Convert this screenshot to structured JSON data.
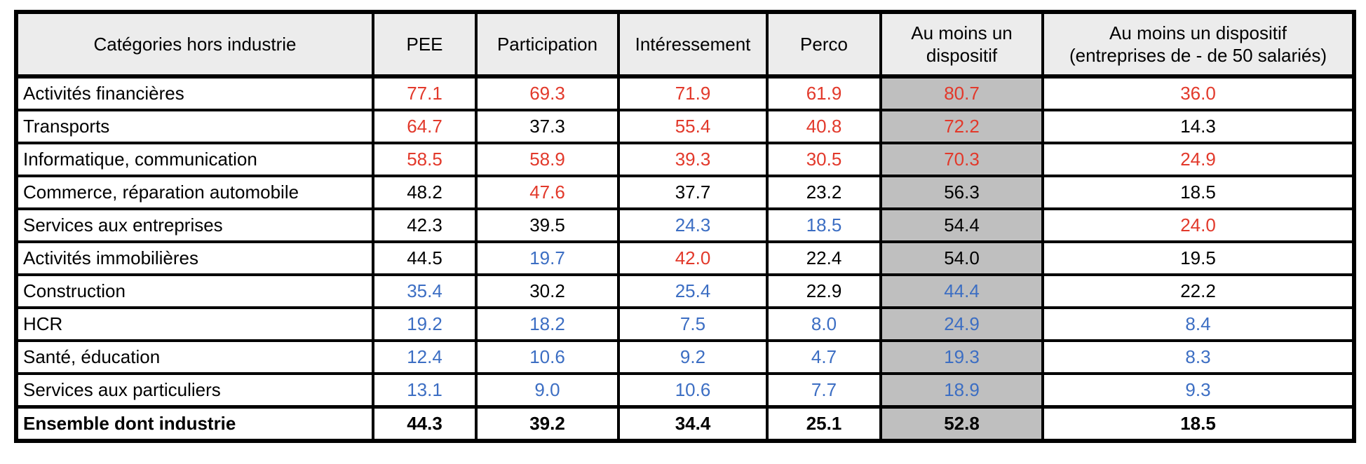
{
  "colors": {
    "red": "#e2392b",
    "blue": "#3c6ec3",
    "black": "#000000",
    "header_bg": "#ececec",
    "highlight_bg": "#bfbfbf",
    "border": "#000000"
  },
  "table": {
    "headers": [
      {
        "line1": "Catégories hors industrie"
      },
      {
        "line1": "PEE"
      },
      {
        "line1": "Participation"
      },
      {
        "line1": "Intéressement"
      },
      {
        "line1": "Perco"
      },
      {
        "line1": "Au moins un",
        "line2": "dispositif"
      },
      {
        "line1": "Au moins un dispositif",
        "line2": "(entreprises de - de 50 salariés)"
      }
    ],
    "rows": [
      {
        "label": "Activités financières",
        "bold": false,
        "values": [
          "77.1",
          "69.3",
          "71.9",
          "61.9",
          "80.7",
          "36.0"
        ],
        "colors": [
          "red",
          "red",
          "red",
          "red",
          "red",
          "red"
        ]
      },
      {
        "label": "Transports",
        "bold": false,
        "values": [
          "64.7",
          "37.3",
          "55.4",
          "40.8",
          "72.2",
          "14.3"
        ],
        "colors": [
          "red",
          "black",
          "red",
          "red",
          "red",
          "black"
        ]
      },
      {
        "label": "Informatique, communication",
        "bold": false,
        "values": [
          "58.5",
          "58.9",
          "39.3",
          "30.5",
          "70.3",
          "24.9"
        ],
        "colors": [
          "red",
          "red",
          "red",
          "red",
          "red",
          "red"
        ]
      },
      {
        "label": "Commerce, réparation automobile",
        "bold": false,
        "values": [
          "48.2",
          "47.6",
          "37.7",
          "23.2",
          "56.3",
          "18.5"
        ],
        "colors": [
          "black",
          "red",
          "black",
          "black",
          "black",
          "black"
        ]
      },
      {
        "label": "Services aux entreprises",
        "bold": false,
        "values": [
          "42.3",
          "39.5",
          "24.3",
          "18.5",
          "54.4",
          "24.0"
        ],
        "colors": [
          "black",
          "black",
          "blue",
          "blue",
          "black",
          "red"
        ]
      },
      {
        "label": "Activités immobilières",
        "bold": false,
        "values": [
          "44.5",
          "19.7",
          "42.0",
          "22.4",
          "54.0",
          "19.5"
        ],
        "colors": [
          "black",
          "blue",
          "red",
          "black",
          "black",
          "black"
        ]
      },
      {
        "label": "Construction",
        "bold": false,
        "values": [
          "35.4",
          "30.2",
          "25.4",
          "22.9",
          "44.4",
          "22.2"
        ],
        "colors": [
          "blue",
          "black",
          "blue",
          "black",
          "blue",
          "black"
        ]
      },
      {
        "label": "HCR",
        "bold": false,
        "values": [
          "19.2",
          "18.2",
          "7.5",
          "8.0",
          "24.9",
          "8.4"
        ],
        "colors": [
          "blue",
          "blue",
          "blue",
          "blue",
          "blue",
          "blue"
        ]
      },
      {
        "label": "Santé, éducation",
        "bold": false,
        "values": [
          "12.4",
          "10.6",
          "9.2",
          "4.7",
          "19.3",
          "8.3"
        ],
        "colors": [
          "blue",
          "blue",
          "blue",
          "blue",
          "blue",
          "blue"
        ]
      },
      {
        "label": "Services aux particuliers",
        "bold": false,
        "values": [
          "13.1",
          "9.0",
          "10.6",
          "7.7",
          "18.9",
          "9.3"
        ],
        "colors": [
          "blue",
          "blue",
          "blue",
          "blue",
          "blue",
          "blue"
        ]
      },
      {
        "label": "Ensemble dont industrie",
        "bold": true,
        "values": [
          "44.3",
          "39.2",
          "34.4",
          "25.1",
          "52.8",
          "18.5"
        ],
        "colors": [
          "black",
          "black",
          "black",
          "black",
          "black",
          "black"
        ]
      }
    ]
  },
  "chart_data": {
    "type": "table",
    "title": "",
    "columns": [
      "Catégories hors industrie",
      "PEE",
      "Participation",
      "Intéressement",
      "Perco",
      "Au moins un dispositif",
      "Au moins un dispositif (entreprises de - de 50 salariés)"
    ],
    "rows": [
      [
        "Activités financières",
        77.1,
        69.3,
        71.9,
        61.9,
        80.7,
        36.0
      ],
      [
        "Transports",
        64.7,
        37.3,
        55.4,
        40.8,
        72.2,
        14.3
      ],
      [
        "Informatique, communication",
        58.5,
        58.9,
        39.3,
        30.5,
        70.3,
        24.9
      ],
      [
        "Commerce, réparation automobile",
        48.2,
        47.6,
        37.7,
        23.2,
        56.3,
        18.5
      ],
      [
        "Services aux entreprises",
        42.3,
        39.5,
        24.3,
        18.5,
        54.4,
        24.0
      ],
      [
        "Activités immobilières",
        44.5,
        19.7,
        42.0,
        22.4,
        54.0,
        19.5
      ],
      [
        "Construction",
        35.4,
        30.2,
        25.4,
        22.9,
        44.4,
        22.2
      ],
      [
        "HCR",
        19.2,
        18.2,
        7.5,
        8.0,
        24.9,
        8.4
      ],
      [
        "Santé, éducation",
        12.4,
        10.6,
        9.2,
        4.7,
        19.3,
        8.3
      ],
      [
        "Services aux particuliers",
        13.1,
        9.0,
        10.6,
        7.7,
        18.9,
        9.3
      ],
      [
        "Ensemble dont industrie",
        44.3,
        39.2,
        34.4,
        25.1,
        52.8,
        18.5
      ]
    ],
    "layout_hints": {
      "highlighted_column": "Au moins un dispositif",
      "value_color_semantics": "red = significantly above average, blue = significantly below average, black = near average",
      "total_row": "Ensemble dont industrie (bold)"
    }
  }
}
